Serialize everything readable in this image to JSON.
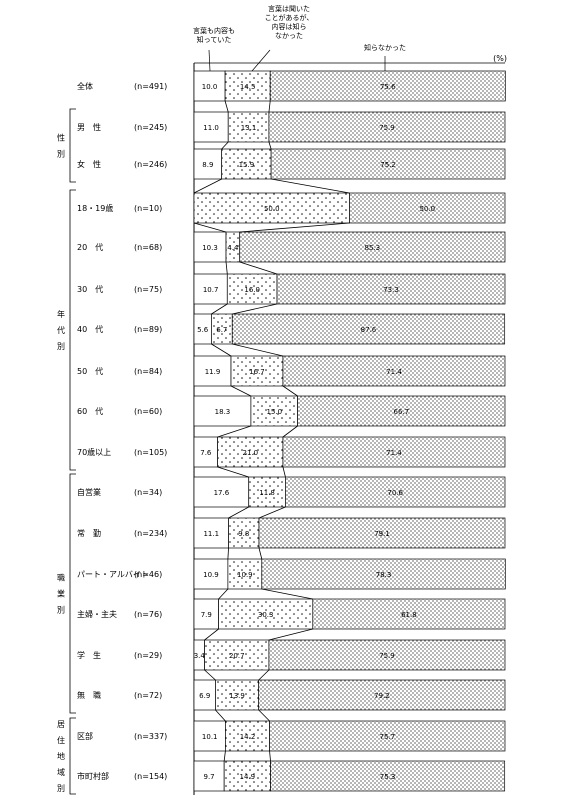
{
  "chart_data": {
    "type": "bar",
    "stacked": true,
    "orientation": "horizontal",
    "unit_label": "(%)",
    "series": [
      {
        "name": "言葉も内容も知っていた",
        "header": [
          "言葉も内容も",
          "知っていた"
        ],
        "pattern": "blank"
      },
      {
        "name": "言葉は聞いたことがあるが、内容は知らなかった",
        "header": [
          "言葉は聞いた",
          "ことがあるが、",
          "内容は知ら",
          "なかった"
        ],
        "pattern": "sparse-dots"
      },
      {
        "name": "知らなかった",
        "header": [
          "知らなかった"
        ],
        "pattern": "dense-dots"
      }
    ],
    "groups": [
      {
        "label": "",
        "rows": [
          0
        ]
      },
      {
        "label": "性別",
        "rows": [
          1,
          2
        ]
      },
      {
        "label": "年代別",
        "rows": [
          3,
          4,
          5,
          6,
          7,
          8,
          9
        ]
      },
      {
        "label": "職業別",
        "rows": [
          10,
          11,
          12,
          13,
          14,
          15
        ]
      },
      {
        "label": "居住地域別",
        "rows": [
          16,
          17
        ]
      }
    ],
    "rows": [
      {
        "label": "全体",
        "n": "(n=491)",
        "values": [
          10.0,
          14.5,
          75.6
        ],
        "value_labels": [
          "10.0",
          "14.5",
          "75.6"
        ]
      },
      {
        "label": "男　性",
        "n": "(n=245)",
        "values": [
          11.0,
          13.1,
          75.9
        ],
        "value_labels": [
          "11.0",
          "13.1",
          "75.9"
        ]
      },
      {
        "label": "女　性",
        "n": "(n=246)",
        "values": [
          8.9,
          15.9,
          75.2
        ],
        "value_labels": [
          "8.9",
          "15.9",
          "75.2"
        ]
      },
      {
        "label": "18・19歳",
        "n": "(n=10)",
        "values": [
          0,
          50.0,
          50.0
        ],
        "value_labels": [
          "",
          "50.0",
          "50.0"
        ]
      },
      {
        "label": "20　代",
        "n": "(n=68)",
        "values": [
          10.3,
          4.4,
          85.3
        ],
        "value_labels": [
          "10.3",
          "4.4",
          "85.3"
        ]
      },
      {
        "label": "30　代",
        "n": "(n=75)",
        "values": [
          10.7,
          16.0,
          73.3
        ],
        "value_labels": [
          "10.7",
          "16.0",
          "73.3"
        ]
      },
      {
        "label": "40　代",
        "n": "(n=89)",
        "values": [
          5.6,
          6.7,
          87.6
        ],
        "value_labels": [
          "5.6",
          "6.7",
          "87.6"
        ]
      },
      {
        "label": "50　代",
        "n": "(n=84)",
        "values": [
          11.9,
          16.7,
          71.4
        ],
        "value_labels": [
          "11.9",
          "16.7",
          "71.4"
        ]
      },
      {
        "label": "60　代",
        "n": "(n=60)",
        "values": [
          18.3,
          15.0,
          66.7
        ],
        "value_labels": [
          "18.3",
          "15.0",
          "66.7"
        ]
      },
      {
        "label": "70歳以上",
        "n": "(n=105)",
        "values": [
          7.6,
          21.0,
          71.4
        ],
        "value_labels": [
          "7.6",
          "21.0",
          "71.4"
        ]
      },
      {
        "label": "自営業",
        "n": "(n=34)",
        "values": [
          17.6,
          11.8,
          70.6
        ],
        "value_labels": [
          "17.6",
          "11.8",
          "70.6"
        ]
      },
      {
        "label": "常　勤",
        "n": "(n=234)",
        "values": [
          11.1,
          9.8,
          79.1
        ],
        "value_labels": [
          "11.1",
          "9.8",
          "79.1"
        ]
      },
      {
        "label": "パート・アルバイト",
        "n": "(n=46)",
        "values": [
          10.9,
          10.9,
          78.3
        ],
        "value_labels": [
          "10.9",
          "10.9",
          "78.3"
        ]
      },
      {
        "label": "主婦・主夫",
        "n": "(n=76)",
        "values": [
          7.9,
          30.3,
          61.8
        ],
        "value_labels": [
          "7.9",
          "30.3",
          "61.8"
        ]
      },
      {
        "label": "学　生",
        "n": "(n=29)",
        "values": [
          3.4,
          20.7,
          75.9
        ],
        "value_labels": [
          "3.4",
          "20.7",
          "75.9"
        ]
      },
      {
        "label": "無　職",
        "n": "(n=72)",
        "values": [
          6.9,
          13.9,
          79.2
        ],
        "value_labels": [
          "6.9",
          "13.9",
          "79.2"
        ]
      },
      {
        "label": "区部",
        "n": "(n=337)",
        "values": [
          10.1,
          14.2,
          75.7
        ],
        "value_labels": [
          "10.1",
          "14.2",
          "75.7"
        ]
      },
      {
        "label": "市町村部",
        "n": "(n=154)",
        "values": [
          9.7,
          14.9,
          75.3
        ],
        "value_labels": [
          "9.7",
          "14.9",
          "75.3"
        ]
      }
    ]
  }
}
